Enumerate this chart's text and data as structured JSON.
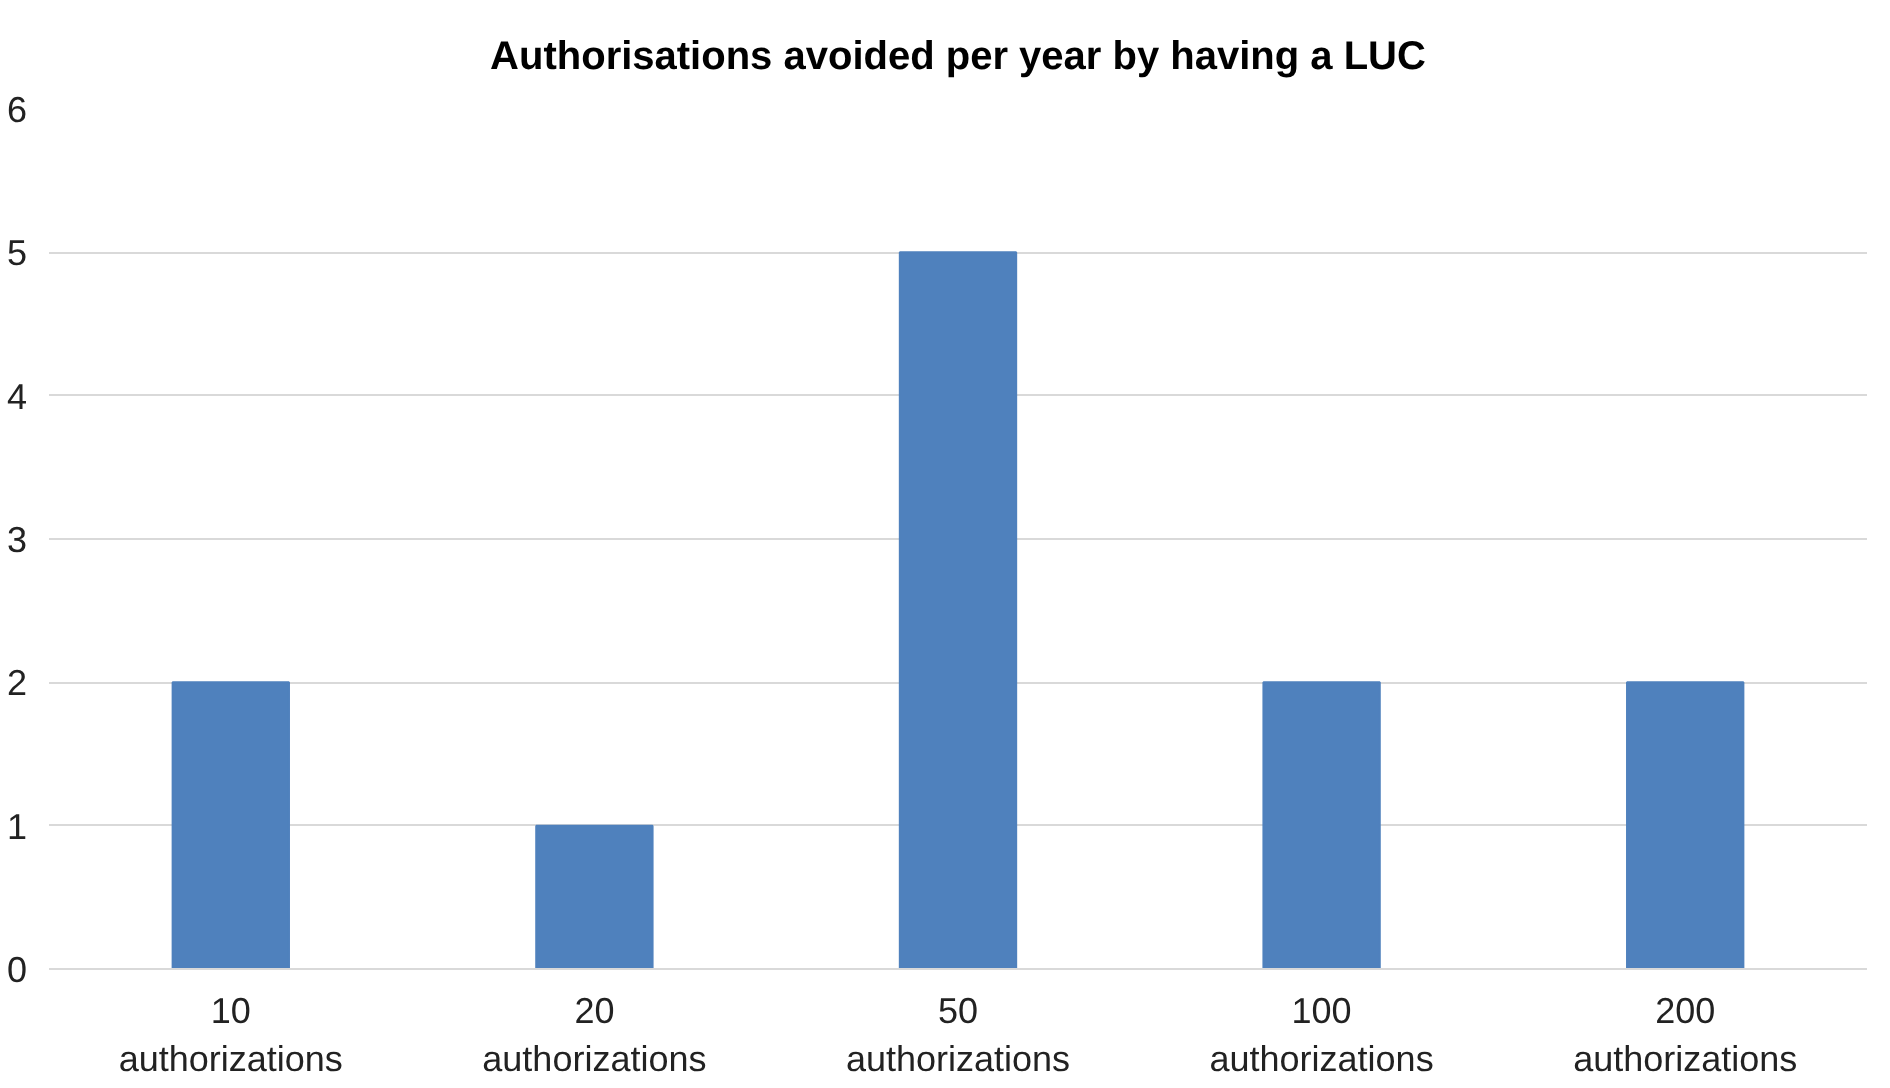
{
  "chart_data": {
    "type": "bar",
    "title": "Authorisations avoided per year by having a LUC",
    "categories": [
      "10 authorizations",
      "20 authorizations",
      "50 authorizations",
      "100 authorizations",
      "200 authorizations"
    ],
    "values": [
      2,
      1,
      5,
      2,
      2
    ],
    "color": "#4f81bd",
    "ylim": [
      0,
      6
    ],
    "yticks": [
      0,
      1,
      2,
      3,
      4,
      5,
      6
    ],
    "grid": "y"
  }
}
